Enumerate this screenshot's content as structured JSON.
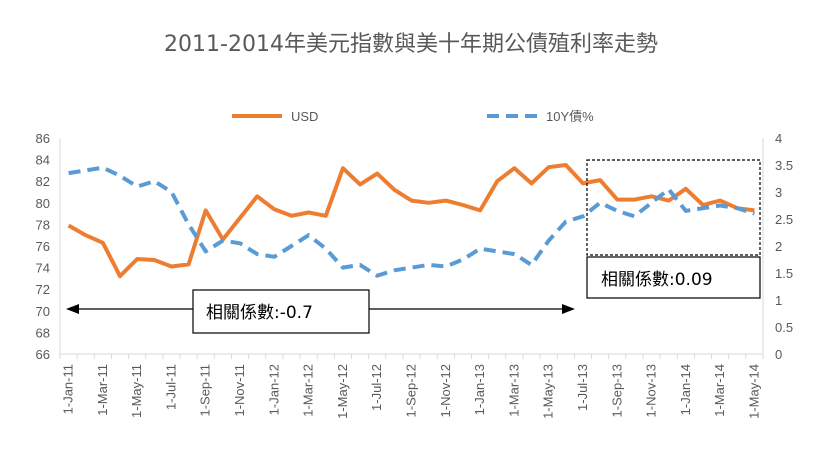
{
  "chart_data": {
    "type": "line",
    "title": "2011-2014年美元指數與美十年期公債殖利率走勢",
    "colors": {
      "usd": "#ED7D31",
      "bond": "#5B9BD5",
      "axis": "#D9D9D9",
      "text": "#595959"
    },
    "x": [
      "1-Jan-11",
      "1-Feb-11",
      "1-Mar-11",
      "1-Apr-11",
      "1-May-11",
      "1-Jun-11",
      "1-Jul-11",
      "1-Aug-11",
      "1-Sep-11",
      "1-Oct-11",
      "1-Nov-11",
      "1-Dec-11",
      "1-Jan-12",
      "1-Feb-12",
      "1-Mar-12",
      "1-Apr-12",
      "1-May-12",
      "1-Jun-12",
      "1-Jul-12",
      "1-Aug-12",
      "1-Sep-12",
      "1-Oct-12",
      "1-Nov-12",
      "1-Dec-12",
      "1-Jan-13",
      "1-Feb-13",
      "1-Mar-13",
      "1-Apr-13",
      "1-May-13",
      "1-Jun-13",
      "1-Jul-13",
      "1-Aug-13",
      "1-Sep-13",
      "1-Oct-13",
      "1-Nov-13",
      "1-Dec-13",
      "1-Jan-14",
      "1-Feb-14",
      "1-Mar-14",
      "1-Apr-14",
      "1-May-14"
    ],
    "x_tick_labels": [
      "1-Jan-11",
      "1-Mar-11",
      "1-May-11",
      "1-Jul-11",
      "1-Sep-11",
      "1-Nov-11",
      "1-Jan-12",
      "1-Mar-12",
      "1-May-12",
      "1-Jul-12",
      "1-Sep-12",
      "1-Nov-12",
      "1-Jan-13",
      "1-Mar-13",
      "1-May-13",
      "1-Jul-13",
      "1-Sep-13",
      "1-Nov-13",
      "1-Jan-14",
      "1-Mar-14",
      "1-May-14"
    ],
    "series": [
      {
        "name": "USD",
        "axis": "left",
        "style": "solid",
        "values": [
          77.9,
          77.0,
          76.3,
          73.2,
          74.8,
          74.7,
          74.1,
          74.3,
          79.3,
          76.6,
          78.6,
          80.6,
          79.4,
          78.8,
          79.1,
          78.8,
          83.2,
          81.7,
          82.7,
          81.2,
          80.2,
          80.0,
          80.2,
          79.8,
          79.3,
          82.0,
          83.2,
          81.8,
          83.3,
          83.5,
          81.8,
          82.1,
          80.3,
          80.3,
          80.6,
          80.2,
          81.3,
          79.8,
          80.2,
          79.5,
          79.3
        ]
      },
      {
        "name": "10Y債%",
        "axis": "right",
        "style": "dashed",
        "values": [
          3.35,
          3.4,
          3.45,
          3.3,
          3.1,
          3.2,
          3.0,
          2.4,
          1.9,
          2.1,
          2.05,
          1.85,
          1.8,
          2.0,
          2.2,
          1.95,
          1.6,
          1.65,
          1.45,
          1.55,
          1.6,
          1.65,
          1.62,
          1.75,
          1.95,
          1.9,
          1.85,
          1.65,
          2.1,
          2.45,
          2.55,
          2.8,
          2.65,
          2.55,
          2.8,
          3.05,
          2.65,
          2.7,
          2.75,
          2.7,
          2.6
        ]
      }
    ],
    "y_left": {
      "min": 66,
      "max": 86,
      "step": 2,
      "ticks": [
        "66",
        "68",
        "70",
        "72",
        "74",
        "76",
        "78",
        "80",
        "82",
        "84",
        "86"
      ]
    },
    "y_right": {
      "min": 0,
      "max": 4,
      "step": 0.5,
      "ticks": [
        "0",
        "0.5",
        "1",
        "1.5",
        "2",
        "2.5",
        "3",
        "3.5",
        "4"
      ]
    },
    "legend": {
      "placement": "top",
      "items": [
        "USD",
        "10Y債%"
      ]
    },
    "annotations": {
      "left_correlation": "相關係數:-0.7",
      "right_correlation": "相關係數:0.09"
    },
    "grid": false
  }
}
